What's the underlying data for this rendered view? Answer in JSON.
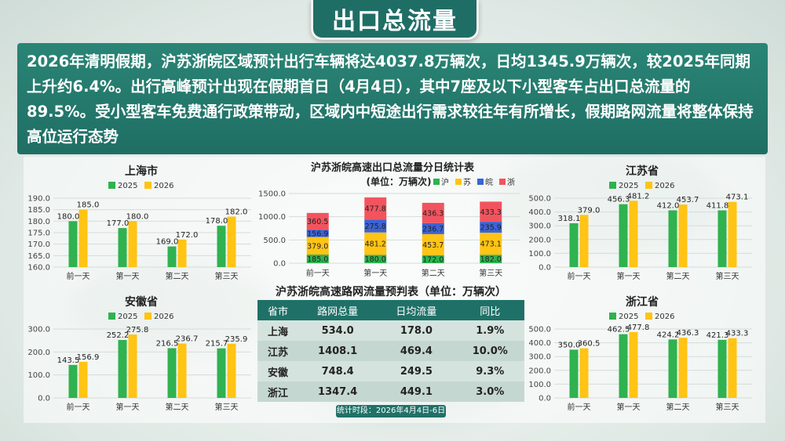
{
  "header": {
    "title": "出口总流量"
  },
  "summary": {
    "text": "2026年清明假期，沪苏浙皖区域预计出行车辆将达4037.8万辆次，日均1345.9万辆次，较2025年同期上升约6.4%。出行高峰预计出现在假期首日（4月4日），其中7座及以下小型客车占出口总流量的89.5%。受小型客车免费通行政策带动，区域内中短途出行需求较往年有所增长，假期路网流量将整体保持高位运行态势"
  },
  "colors": {
    "y2025": "#2fb24f",
    "y2026": "#ffc414",
    "hu": "#2fb24f",
    "su": "#ffc414",
    "wan": "#3b63d6",
    "zhe": "#f2545f",
    "dark_teal": "#1f6e66"
  },
  "chart_data": [
    {
      "id": "shanghai",
      "type": "bar",
      "title": "上海市",
      "categories": [
        "前一天",
        "第一天",
        "第二天",
        "第三天"
      ],
      "series": [
        {
          "name": "2025",
          "values": [
            180.0,
            177.0,
            169.0,
            178.0
          ]
        },
        {
          "name": "2026",
          "values": [
            185.0,
            180.0,
            172.0,
            182.0
          ]
        }
      ],
      "ylim": [
        160,
        190
      ],
      "yticks": [
        "190.0",
        "185.0",
        "180.0",
        "175.0",
        "170.0",
        "165.0",
        "160.0"
      ],
      "legend": "top",
      "grid": true
    },
    {
      "id": "anhui",
      "type": "bar",
      "title": "安徽省",
      "categories": [
        "前一天",
        "第一天",
        "第二天",
        "第三天"
      ],
      "series": [
        {
          "name": "2025",
          "values": [
            143.5,
            252.2,
            216.5,
            215.7
          ]
        },
        {
          "name": "2026",
          "values": [
            156.9,
            275.8,
            236.7,
            235.9
          ]
        }
      ],
      "ylim": [
        0,
        300
      ],
      "yticks": [
        "300.0",
        "200.0",
        "100.0",
        "0.0"
      ],
      "legend": "top",
      "grid": true
    },
    {
      "id": "jiangsu",
      "type": "bar",
      "title": "江苏省",
      "categories": [
        "前一天",
        "第一天",
        "第二天",
        "第三天"
      ],
      "series": [
        {
          "name": "2025",
          "values": [
            318.1,
            456.3,
            412.0,
            411.8
          ]
        },
        {
          "name": "2026",
          "values": [
            379.0,
            481.2,
            453.7,
            473.1
          ]
        }
      ],
      "ylim": [
        0,
        500
      ],
      "yticks": [
        "500.0",
        "400.0",
        "300.0",
        "200.0",
        "100.0",
        "0.0"
      ],
      "legend": "top",
      "grid": true
    },
    {
      "id": "zhejiang",
      "type": "bar",
      "title": "浙江省",
      "categories": [
        "前一天",
        "第一天",
        "第二天",
        "第三天"
      ],
      "series": [
        {
          "name": "2025",
          "values": [
            350.0,
            462.5,
            424.2,
            421.3
          ]
        },
        {
          "name": "2026",
          "values": [
            360.5,
            477.8,
            436.3,
            433.3
          ]
        }
      ],
      "ylim": [
        0,
        500
      ],
      "yticks": [
        "500.0",
        "400.0",
        "300.0",
        "200.0",
        "100.0",
        "0.0"
      ],
      "legend": "top",
      "grid": true
    },
    {
      "id": "daily",
      "type": "bar",
      "stacked": true,
      "title": "沪苏浙皖高速出口总流量分日统计表",
      "subtitle": "(单位：万辆次)",
      "categories": [
        "前一天",
        "第一天",
        "第二天",
        "第三天"
      ],
      "series": [
        {
          "name": "沪",
          "values": [
            185.0,
            180.0,
            172.0,
            182.0
          ]
        },
        {
          "name": "苏",
          "values": [
            379.0,
            481.2,
            453.7,
            473.1
          ]
        },
        {
          "name": "皖",
          "values": [
            156.9,
            275.8,
            236.7,
            235.9
          ]
        },
        {
          "name": "浙",
          "values": [
            360.5,
            477.8,
            436.3,
            433.3
          ]
        }
      ],
      "ylim": [
        0,
        1500
      ],
      "yticks": [
        "1500.0",
        "1000.0",
        "500.0",
        "0.0"
      ],
      "legend": "top-right",
      "grid": true
    },
    {
      "id": "forecast_table",
      "type": "table",
      "title": "沪苏浙皖高速路网流量预判表（单位：万辆次）",
      "columns": [
        "省市",
        "路网总量",
        "日均流量",
        "同比"
      ],
      "rows": [
        [
          "上海",
          "534.0",
          "178.0",
          "1.9%"
        ],
        [
          "江苏",
          "1408.1",
          "469.4",
          "10.0%"
        ],
        [
          "安徽",
          "748.4",
          "249.5",
          "9.3%"
        ],
        [
          "浙江",
          "1347.4",
          "449.1",
          "3.0%"
        ]
      ],
      "note": "统计时段：2026年4月4日-6日"
    }
  ]
}
